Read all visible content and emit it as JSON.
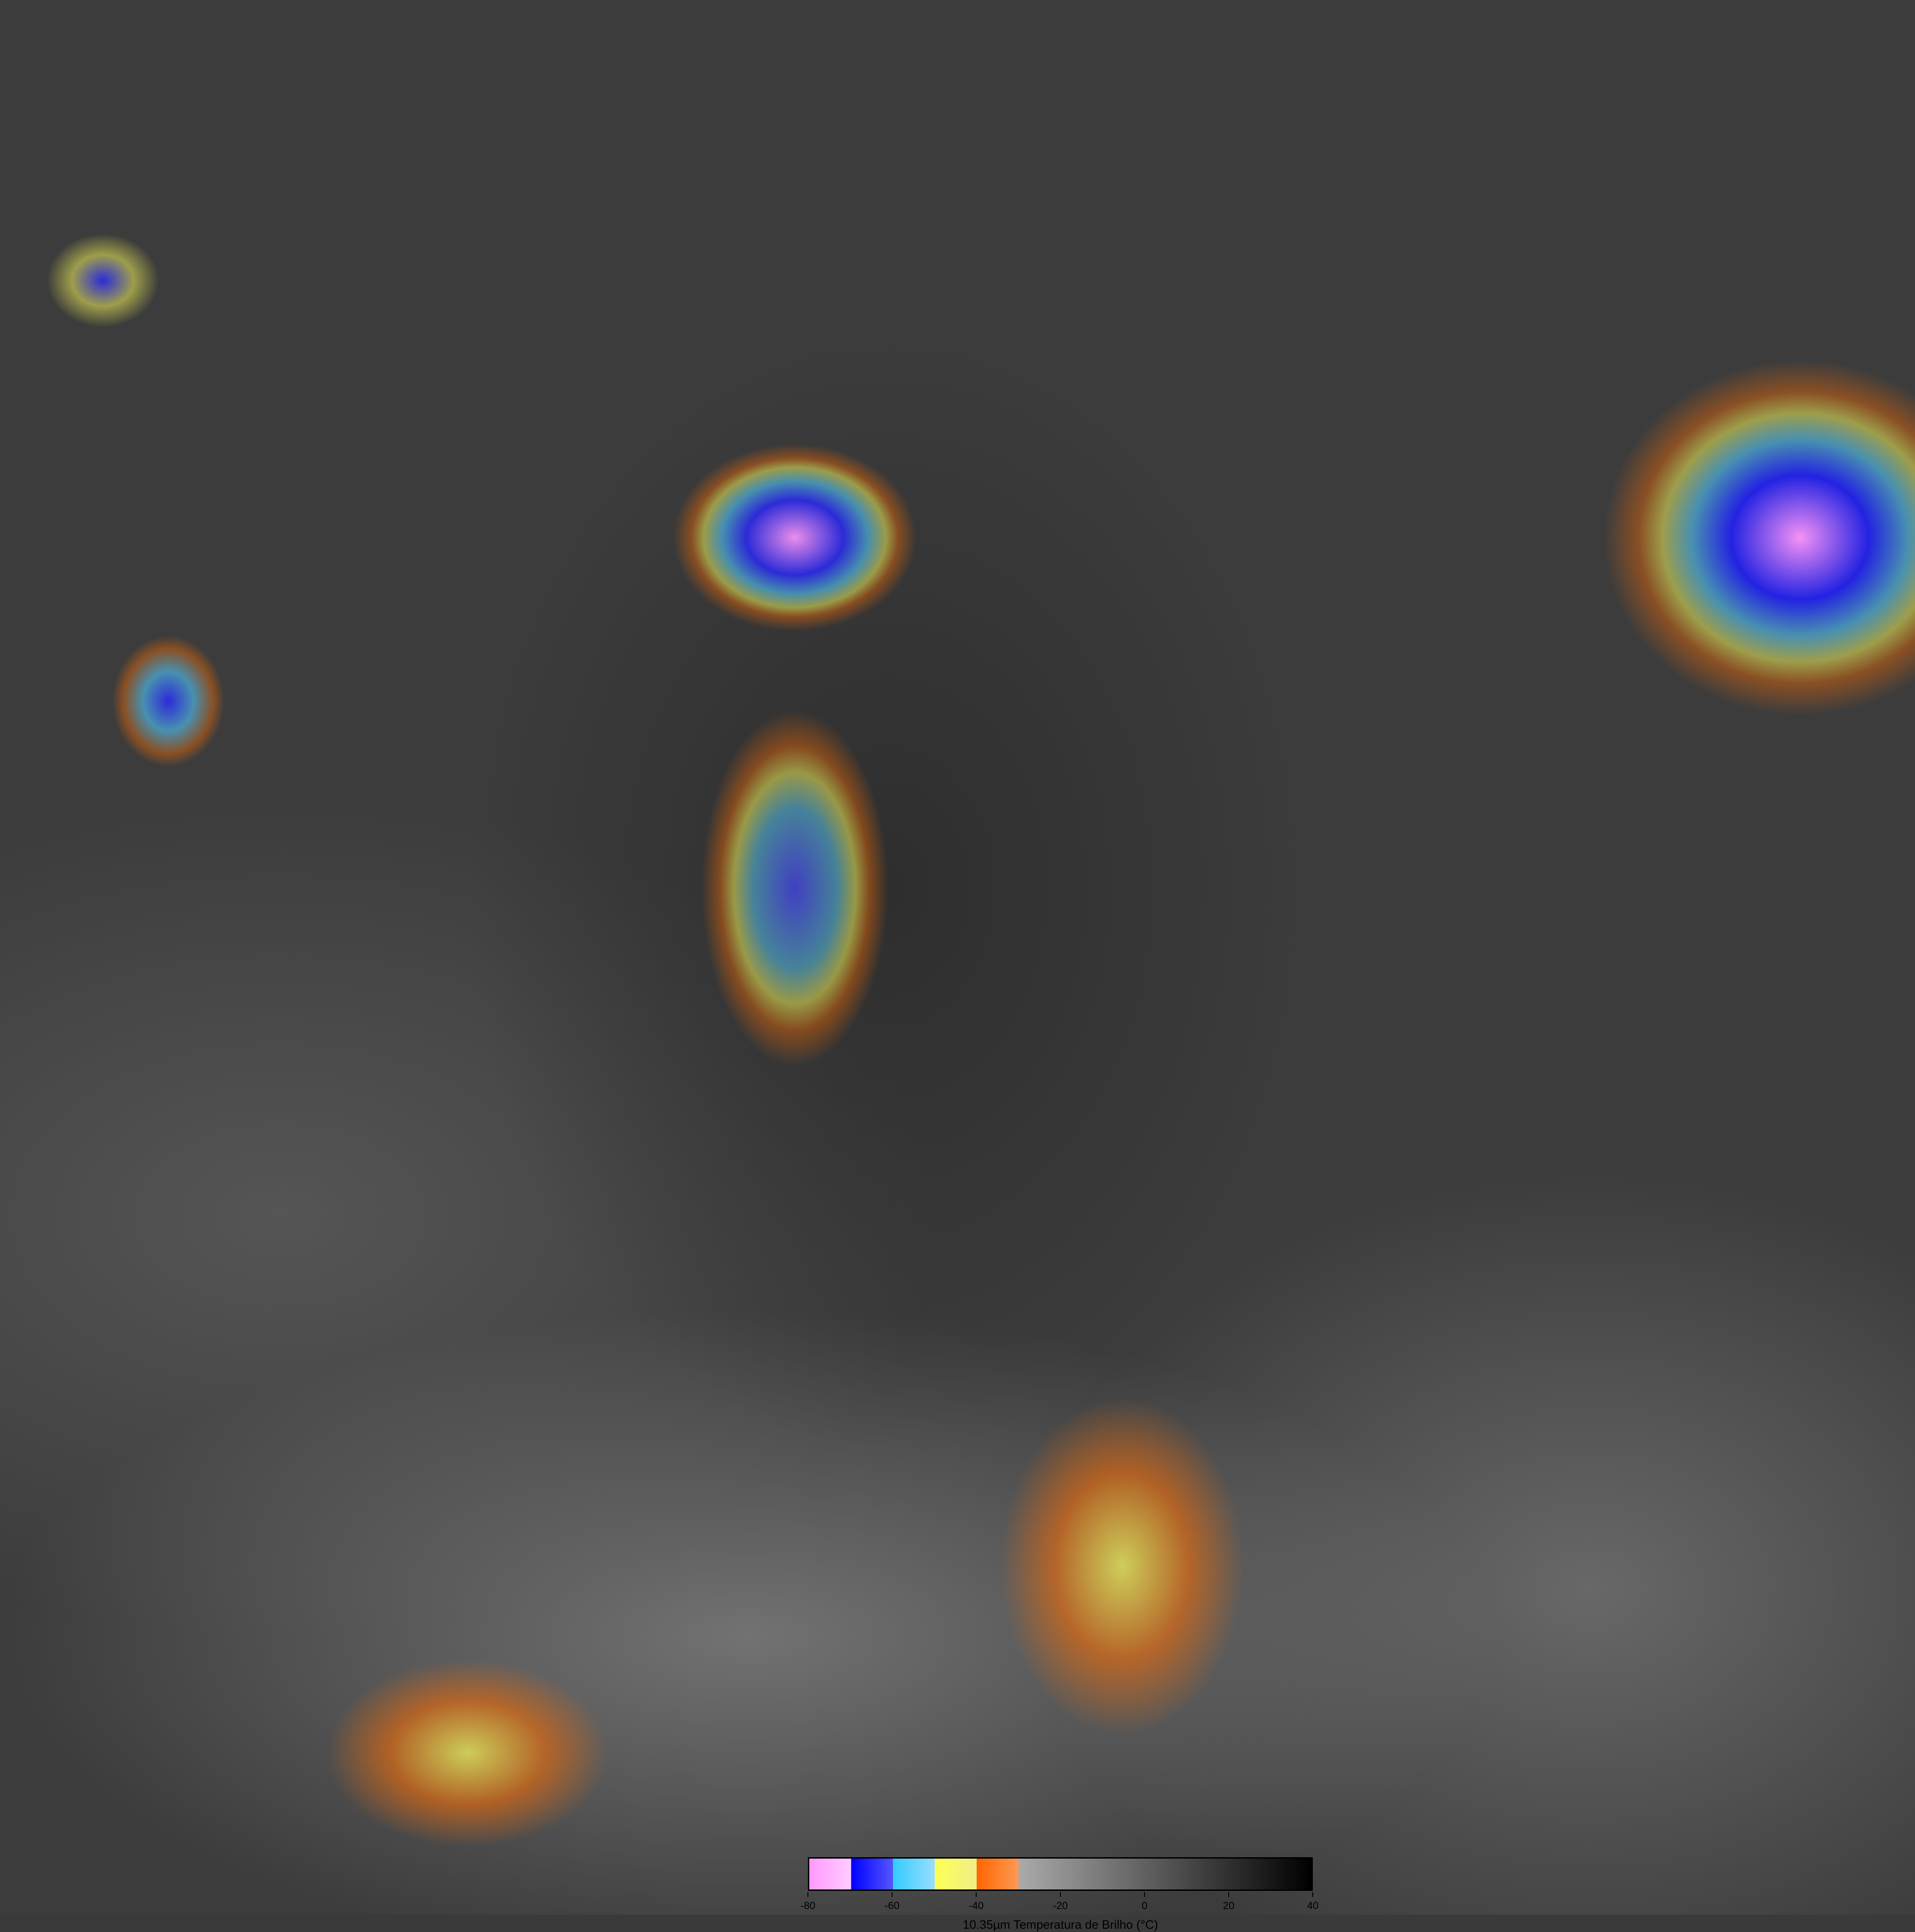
{
  "colorbar": {
    "title": "10.35µm Temperatura de Brilho (°C)",
    "range": [
      -80,
      40
    ],
    "ticks": [
      "-80",
      "-60",
      "-40",
      "-20",
      "0",
      "20",
      "40"
    ],
    "segments": [
      {
        "from": -80,
        "to": -70,
        "color": "#ff99ff"
      },
      {
        "from": -70,
        "to": -60,
        "color": "#0000ff"
      },
      {
        "from": -60,
        "to": -50,
        "color": "#33ccff"
      },
      {
        "from": -50,
        "to": -40,
        "color": "#ffff55"
      },
      {
        "from": -40,
        "to": -30,
        "color": "#ff6600"
      },
      {
        "from": -30,
        "to": 40,
        "color": "gray gradient light to black"
      }
    ]
  }
}
